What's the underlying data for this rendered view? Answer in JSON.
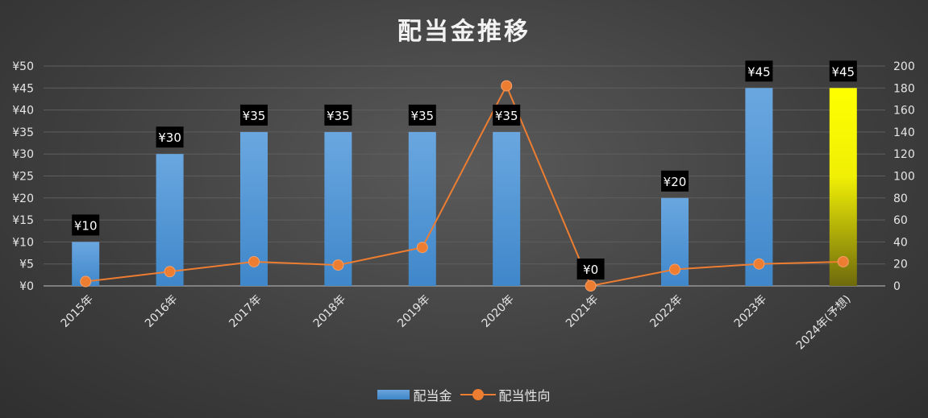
{
  "chart_data": {
    "type": "bar",
    "title": "配当金推移",
    "categories": [
      "2015年",
      "2016年",
      "2017年",
      "2018年",
      "2019年",
      "2020年",
      "2021年",
      "2022年",
      "2023年",
      "2024年(予想)"
    ],
    "series": [
      {
        "name": "配当金",
        "type": "bar",
        "axis": "left",
        "values": [
          10,
          30,
          35,
          35,
          35,
          35,
          0,
          20,
          45,
          45
        ],
        "labels": [
          "¥10",
          "¥30",
          "¥35",
          "¥35",
          "¥35",
          "¥35",
          "¥0",
          "¥20",
          "¥45",
          "¥45"
        ],
        "color": "#5b9bd5",
        "highlight_last_color": "#ffff00"
      },
      {
        "name": "配当性向",
        "type": "line",
        "axis": "right",
        "values": [
          4,
          13,
          22,
          19,
          35,
          182,
          0,
          15,
          20,
          22
        ],
        "color": "#ed7d31"
      }
    ],
    "y_left": {
      "min": 0,
      "max": 50,
      "step": 5,
      "ticks": [
        "¥0",
        "¥5",
        "¥10",
        "¥15",
        "¥20",
        "¥25",
        "¥30",
        "¥35",
        "¥40",
        "¥45",
        "¥50"
      ]
    },
    "y_right": {
      "min": 0,
      "max": 200,
      "step": 20,
      "ticks": [
        "0",
        "20",
        "40",
        "60",
        "80",
        "100",
        "120",
        "140",
        "160",
        "180",
        "200"
      ]
    },
    "grid": true,
    "legend": "bottom"
  }
}
